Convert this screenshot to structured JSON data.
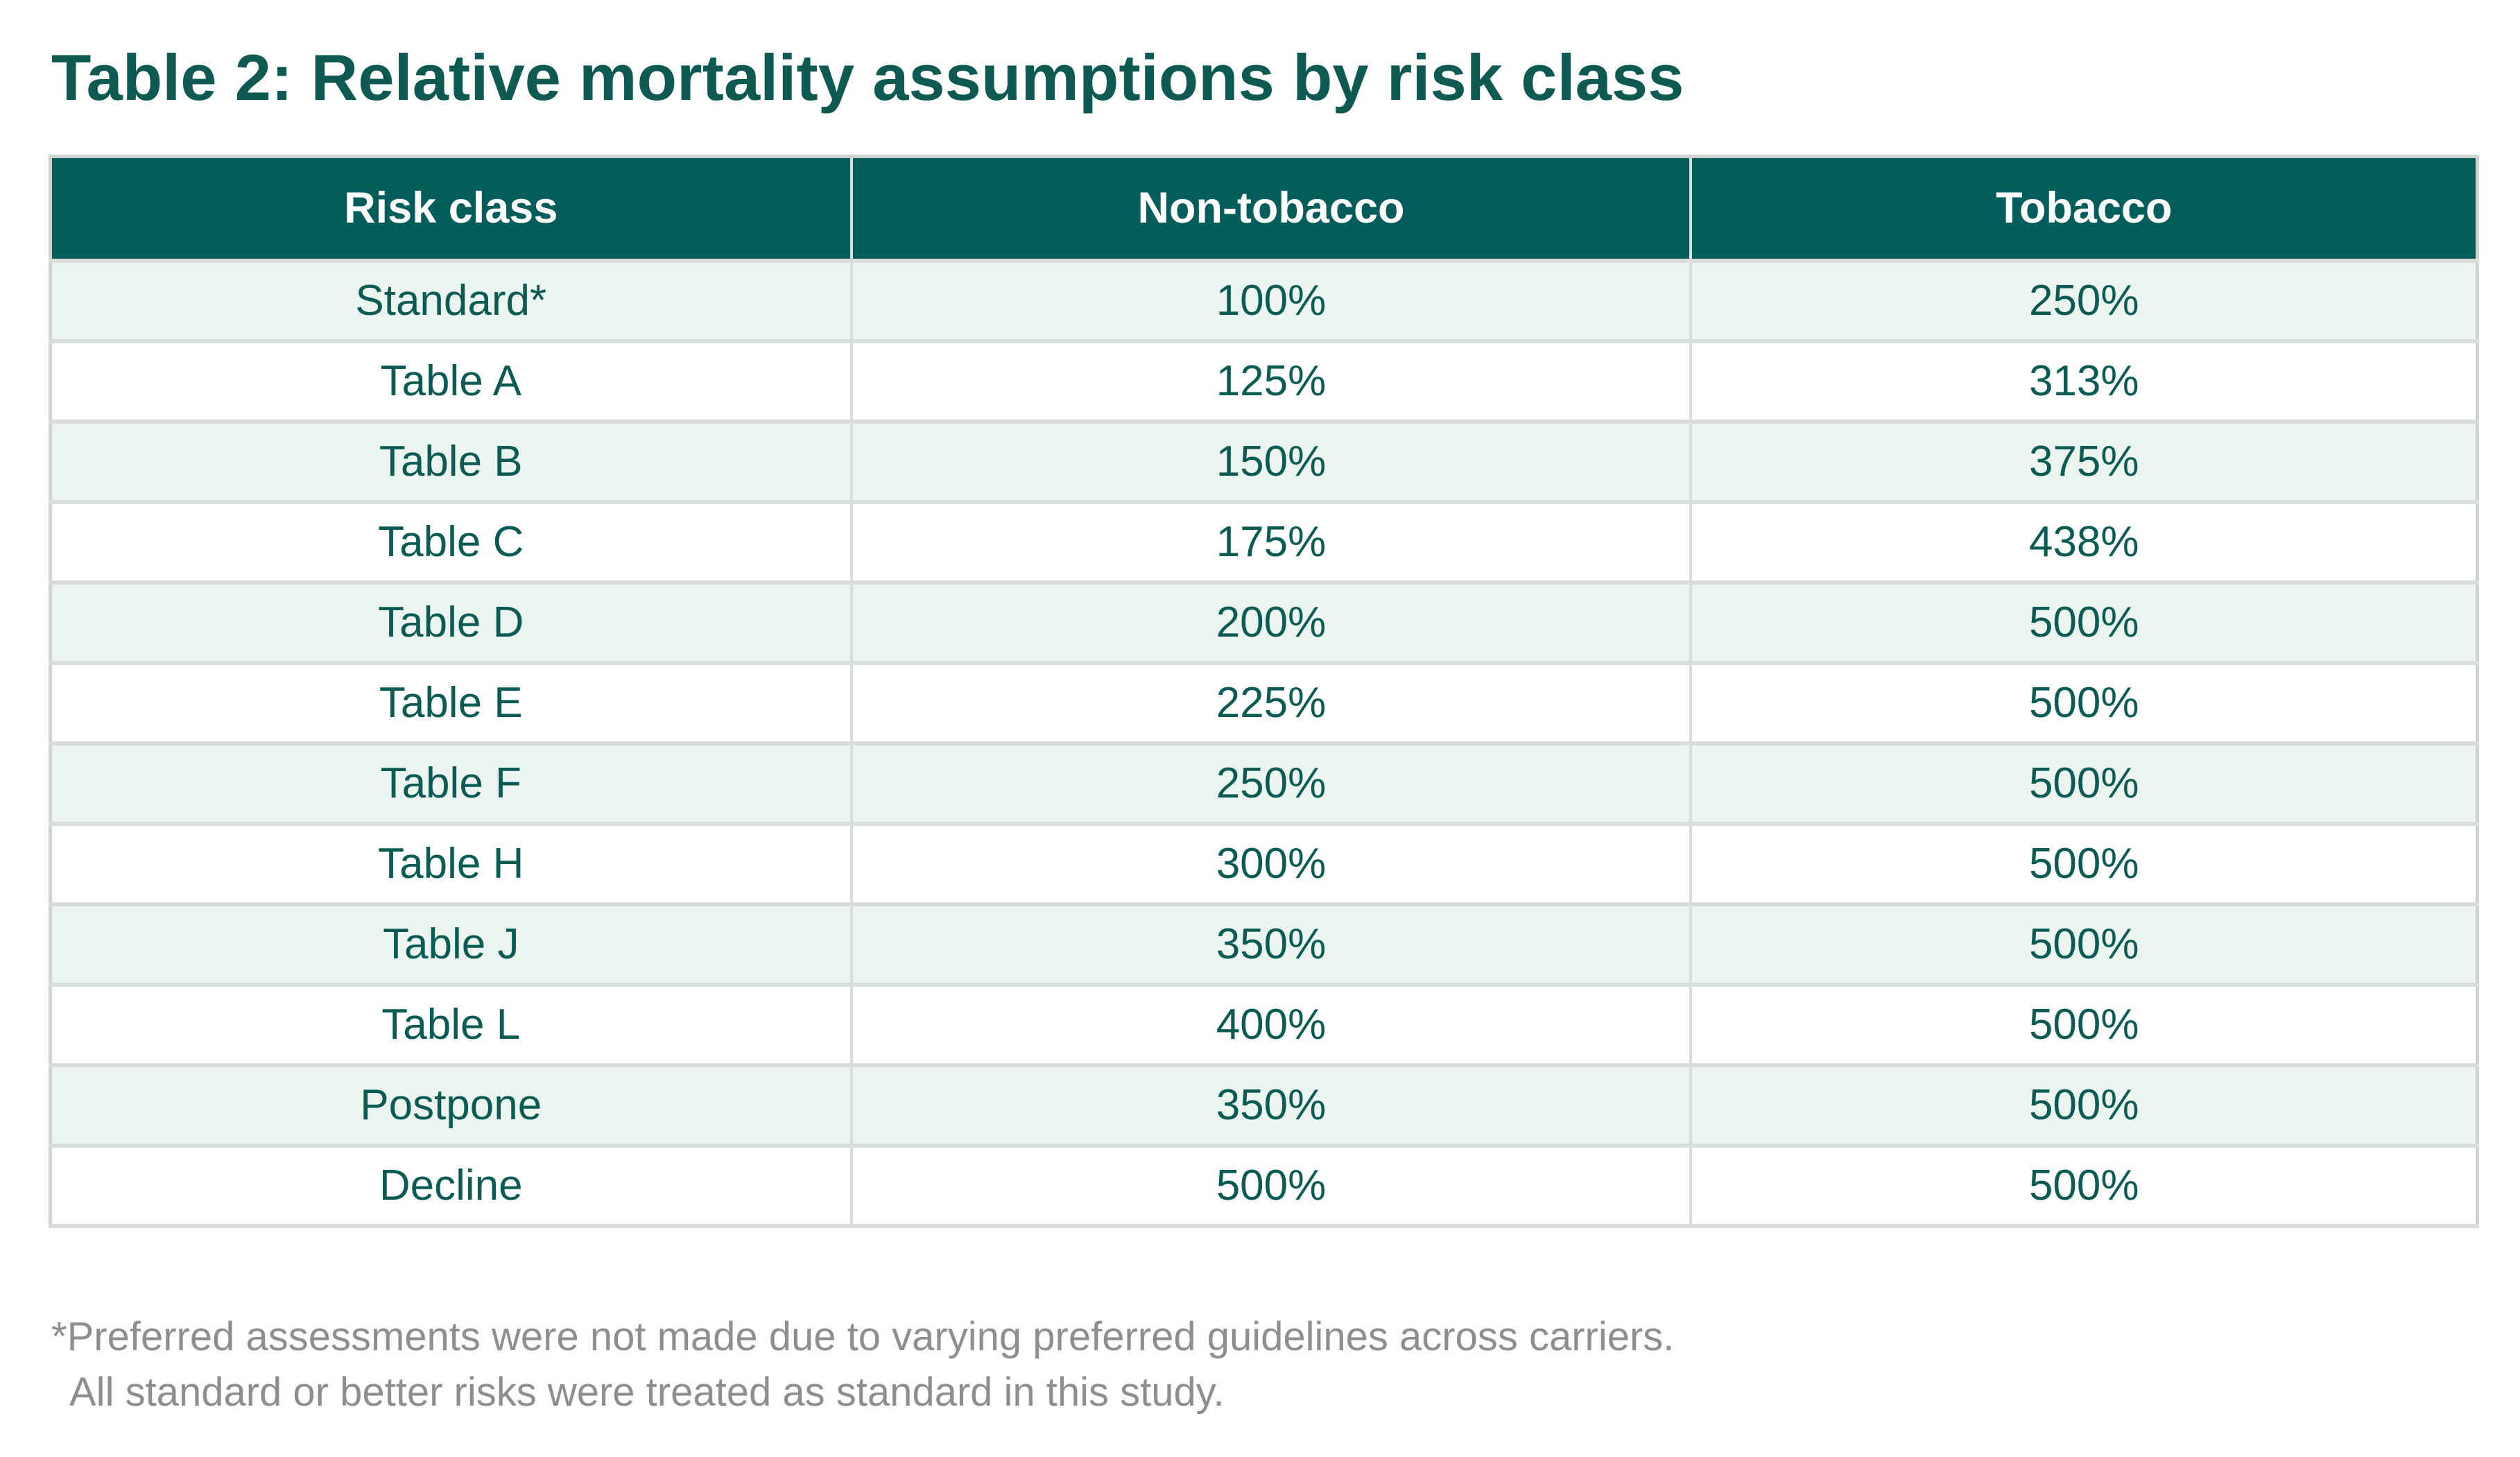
{
  "page": {
    "title": "Table 2: Relative mortality assumptions by risk class"
  },
  "table": {
    "columns": [
      "Risk class",
      "Non-tobacco",
      "Tobacco"
    ],
    "rows": [
      [
        "Standard*",
        "100%",
        "250%"
      ],
      [
        "Table A",
        "125%",
        "313%"
      ],
      [
        "Table B",
        "150%",
        "375%"
      ],
      [
        "Table C",
        "175%",
        "438%"
      ],
      [
        "Table D",
        "200%",
        "500%"
      ],
      [
        "Table E",
        "225%",
        "500%"
      ],
      [
        "Table F",
        "250%",
        "500%"
      ],
      [
        "Table H",
        "300%",
        "500%"
      ],
      [
        "Table J",
        "350%",
        "500%"
      ],
      [
        "Table L",
        "400%",
        "500%"
      ],
      [
        "Postpone",
        "350%",
        "500%"
      ],
      [
        "Decline",
        "500%",
        "500%"
      ]
    ]
  },
  "footnote": {
    "line1": "*Preferred assessments were not made due to varying preferred guidelines across carriers.",
    "line2": "All standard or better risks were treated as standard in this study."
  },
  "colors": {
    "header_bg": "#025d5b",
    "title_color": "#0e5951",
    "cell_text": "#0b5b55",
    "row_alt_bg": "#ecf4ef",
    "border_color": "#d9dddc",
    "outer_border": "#cfd4d3",
    "footnote_color": "#8e8e8e"
  }
}
